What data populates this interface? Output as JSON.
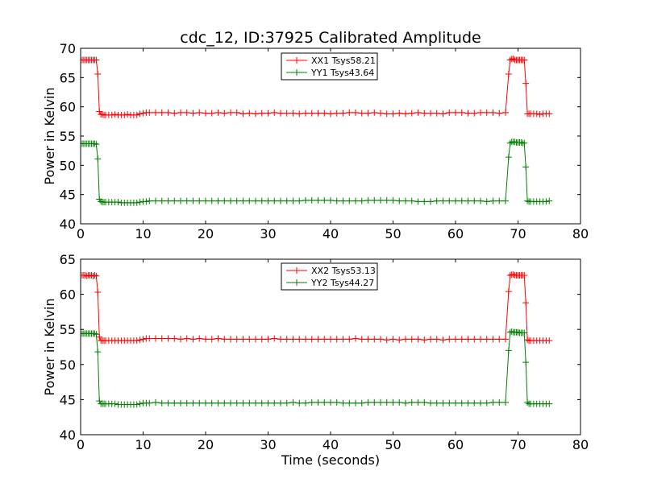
{
  "title": "cdc_12, ID:37925 Calibrated Amplitude",
  "chart_data": [
    {
      "type": "line",
      "ylabel": "Power in Kelvin",
      "xlabel": "",
      "xlim": [
        0,
        80
      ],
      "ylim": [
        40,
        70
      ],
      "xticks": [
        0,
        10,
        20,
        30,
        40,
        50,
        60,
        70,
        80
      ],
      "yticks": [
        40,
        45,
        50,
        55,
        60,
        65,
        70
      ],
      "legend_position": "top-center",
      "series": [
        {
          "name": "XX1 Tsys58.21",
          "color": "#ff0000",
          "marker": "plus",
          "x": [
            0.25,
            0.5,
            0.75,
            1.0,
            1.25,
            1.5,
            1.75,
            2.0,
            2.25,
            2.5,
            2.75,
            3.0,
            3.25,
            3.5,
            3.75,
            4.0,
            4.5,
            5.0,
            5.5,
            6.0,
            6.5,
            7.0,
            7.5,
            8.0,
            8.5,
            9.0,
            9.5,
            10.0,
            10.5,
            11.0,
            12.0,
            13.0,
            14.0,
            15.0,
            16.0,
            17.0,
            18.0,
            19.0,
            20.0,
            21.0,
            22.0,
            23.0,
            24.0,
            25.0,
            26.0,
            27.0,
            28.0,
            29.0,
            30.0,
            31.0,
            32.0,
            33.0,
            34.0,
            35.0,
            36.0,
            37.0,
            38.0,
            39.0,
            40.0,
            41.0,
            42.0,
            43.0,
            44.0,
            45.0,
            46.0,
            47.0,
            48.0,
            49.0,
            50.0,
            51.0,
            52.0,
            53.0,
            54.0,
            55.0,
            56.0,
            57.0,
            58.0,
            59.0,
            60.0,
            61.0,
            62.0,
            63.0,
            64.0,
            65.0,
            66.0,
            67.0,
            68.0,
            68.5,
            68.75,
            69.0,
            69.25,
            69.5,
            69.75,
            70.0,
            70.25,
            70.5,
            70.75,
            71.0,
            71.25,
            71.5,
            71.75,
            72.0,
            72.5,
            73.0,
            73.5,
            74.0,
            74.5,
            75.0
          ],
          "y": [
            68.0,
            68.0,
            68.0,
            68.0,
            68.0,
            68.0,
            68.0,
            68.0,
            68.0,
            68.0,
            65.6,
            59.2,
            58.7,
            58.7,
            58.6,
            58.6,
            58.6,
            58.6,
            58.7,
            58.6,
            58.6,
            58.6,
            58.7,
            58.6,
            58.6,
            58.6,
            58.8,
            58.9,
            59.0,
            59.0,
            59.0,
            59.0,
            59.0,
            58.9,
            59.0,
            59.0,
            58.9,
            59.0,
            58.9,
            58.9,
            59.0,
            58.9,
            59.0,
            59.0,
            58.8,
            58.9,
            58.8,
            58.9,
            58.9,
            59.0,
            58.9,
            58.9,
            58.9,
            58.8,
            58.9,
            58.9,
            58.9,
            58.9,
            58.8,
            58.9,
            58.9,
            59.0,
            59.0,
            58.9,
            58.9,
            59.0,
            58.9,
            58.8,
            58.8,
            58.9,
            58.8,
            58.9,
            59.0,
            58.9,
            58.9,
            58.9,
            58.8,
            59.0,
            59.0,
            59.0,
            58.9,
            58.9,
            59.0,
            59.0,
            59.0,
            58.9,
            59.0,
            65.6,
            68.0,
            68.2,
            68.2,
            68.0,
            68.0,
            68.0,
            68.0,
            68.0,
            68.0,
            68.0,
            64.0,
            58.8,
            58.8,
            58.8,
            58.8,
            58.8,
            58.7,
            58.8,
            58.8,
            58.8
          ]
        },
        {
          "name": "YY1 Tsys43.64",
          "color": "#008000",
          "marker": "plus",
          "x": [
            0.25,
            0.5,
            0.75,
            1.0,
            1.25,
            1.5,
            1.75,
            2.0,
            2.25,
            2.5,
            2.75,
            3.0,
            3.25,
            3.5,
            3.75,
            4.0,
            4.5,
            5.0,
            5.5,
            6.0,
            6.5,
            7.0,
            7.5,
            8.0,
            8.5,
            9.0,
            9.5,
            10.0,
            10.5,
            11.0,
            12.0,
            13.0,
            14.0,
            15.0,
            16.0,
            17.0,
            18.0,
            19.0,
            20.0,
            21.0,
            22.0,
            23.0,
            24.0,
            25.0,
            26.0,
            27.0,
            28.0,
            29.0,
            30.0,
            31.0,
            32.0,
            33.0,
            34.0,
            35.0,
            36.0,
            37.0,
            38.0,
            39.0,
            40.0,
            41.0,
            42.0,
            43.0,
            44.0,
            45.0,
            46.0,
            47.0,
            48.0,
            49.0,
            50.0,
            51.0,
            52.0,
            53.0,
            54.0,
            55.0,
            56.0,
            57.0,
            58.0,
            59.0,
            60.0,
            61.0,
            62.0,
            63.0,
            64.0,
            65.0,
            66.0,
            67.0,
            68.0,
            68.5,
            68.75,
            69.0,
            69.25,
            69.5,
            69.75,
            70.0,
            70.25,
            70.5,
            70.75,
            71.0,
            71.25,
            71.5,
            71.75,
            72.0,
            72.5,
            73.0,
            73.5,
            74.0,
            74.5,
            75.0
          ],
          "y": [
            53.7,
            53.7,
            53.7,
            53.7,
            53.7,
            53.7,
            53.7,
            53.7,
            53.7,
            53.6,
            51.1,
            44.2,
            43.8,
            43.7,
            43.7,
            43.7,
            43.7,
            43.7,
            43.7,
            43.7,
            43.6,
            43.6,
            43.6,
            43.6,
            43.6,
            43.6,
            43.7,
            43.8,
            43.8,
            43.9,
            43.9,
            43.9,
            43.9,
            43.9,
            43.9,
            43.9,
            43.9,
            43.9,
            43.9,
            43.9,
            43.9,
            43.9,
            43.9,
            43.9,
            43.9,
            43.9,
            43.9,
            43.9,
            43.9,
            43.9,
            43.9,
            43.9,
            43.9,
            43.9,
            44.0,
            44.0,
            44.0,
            44.0,
            44.0,
            43.9,
            43.9,
            43.9,
            43.9,
            43.9,
            44.0,
            44.0,
            44.0,
            44.0,
            44.0,
            43.9,
            43.9,
            43.9,
            43.8,
            43.8,
            43.8,
            43.9,
            43.9,
            43.9,
            43.9,
            43.9,
            43.9,
            43.9,
            43.9,
            43.8,
            43.9,
            43.9,
            43.9,
            51.4,
            53.8,
            54.0,
            54.0,
            54.0,
            53.9,
            53.9,
            53.9,
            53.9,
            53.8,
            53.8,
            49.7,
            43.9,
            43.8,
            43.8,
            43.8,
            43.8,
            43.8,
            43.8,
            43.8,
            43.9
          ]
        }
      ]
    },
    {
      "type": "line",
      "ylabel": "Power in Kelvin",
      "xlabel": "Time (seconds)",
      "xlim": [
        0,
        80
      ],
      "ylim": [
        40,
        65
      ],
      "xticks": [
        0,
        10,
        20,
        30,
        40,
        50,
        60,
        70,
        80
      ],
      "yticks": [
        40,
        45,
        50,
        55,
        60,
        65
      ],
      "legend_position": "top-center",
      "series": [
        {
          "name": "XX2 Tsys53.13",
          "color": "#ff0000",
          "marker": "plus",
          "x": [
            0.25,
            0.5,
            0.75,
            1.0,
            1.25,
            1.5,
            1.75,
            2.0,
            2.25,
            2.5,
            2.75,
            3.0,
            3.25,
            3.5,
            3.75,
            4.0,
            4.5,
            5.0,
            5.5,
            6.0,
            6.5,
            7.0,
            7.5,
            8.0,
            8.5,
            9.0,
            9.5,
            10.0,
            10.5,
            11.0,
            12.0,
            13.0,
            14.0,
            15.0,
            16.0,
            17.0,
            18.0,
            19.0,
            20.0,
            21.0,
            22.0,
            23.0,
            24.0,
            25.0,
            26.0,
            27.0,
            28.0,
            29.0,
            30.0,
            31.0,
            32.0,
            33.0,
            34.0,
            35.0,
            36.0,
            37.0,
            38.0,
            39.0,
            40.0,
            41.0,
            42.0,
            43.0,
            44.0,
            45.0,
            46.0,
            47.0,
            48.0,
            49.0,
            50.0,
            51.0,
            52.0,
            53.0,
            54.0,
            55.0,
            56.0,
            57.0,
            58.0,
            59.0,
            60.0,
            61.0,
            62.0,
            63.0,
            64.0,
            65.0,
            66.0,
            67.0,
            68.0,
            68.5,
            68.75,
            69.0,
            69.25,
            69.5,
            69.75,
            70.0,
            70.25,
            70.5,
            70.75,
            71.0,
            71.25,
            71.5,
            71.75,
            72.0,
            72.5,
            73.0,
            73.5,
            74.0,
            74.5,
            75.0
          ],
          "y": [
            62.7,
            62.7,
            62.7,
            62.6,
            62.7,
            62.7,
            62.7,
            62.6,
            62.7,
            62.6,
            60.3,
            53.9,
            53.4,
            53.4,
            53.4,
            53.4,
            53.4,
            53.4,
            53.4,
            53.4,
            53.4,
            53.4,
            53.4,
            53.4,
            53.4,
            53.4,
            53.5,
            53.6,
            53.7,
            53.7,
            53.7,
            53.7,
            53.7,
            53.7,
            53.6,
            53.7,
            53.6,
            53.7,
            53.6,
            53.6,
            53.7,
            53.6,
            53.6,
            53.6,
            53.6,
            53.6,
            53.6,
            53.6,
            53.6,
            53.7,
            53.6,
            53.6,
            53.6,
            53.6,
            53.6,
            53.6,
            53.6,
            53.6,
            53.6,
            53.6,
            53.6,
            53.6,
            53.7,
            53.6,
            53.6,
            53.6,
            53.6,
            53.5,
            53.6,
            53.5,
            53.6,
            53.6,
            53.6,
            53.5,
            53.6,
            53.6,
            53.5,
            53.6,
            53.6,
            53.6,
            53.6,
            53.6,
            53.6,
            53.6,
            53.6,
            53.6,
            53.6,
            60.4,
            62.7,
            62.8,
            62.8,
            62.7,
            62.7,
            62.7,
            62.7,
            62.7,
            62.7,
            62.7,
            58.8,
            53.5,
            53.4,
            53.4,
            53.4,
            53.4,
            53.4,
            53.4,
            53.4,
            53.4
          ]
        },
        {
          "name": "YY2 Tsys44.27",
          "color": "#008000",
          "marker": "plus",
          "x": [
            0.25,
            0.5,
            0.75,
            1.0,
            1.25,
            1.5,
            1.75,
            2.0,
            2.25,
            2.5,
            2.75,
            3.0,
            3.25,
            3.5,
            3.75,
            4.0,
            4.5,
            5.0,
            5.5,
            6.0,
            6.5,
            7.0,
            7.5,
            8.0,
            8.5,
            9.0,
            9.5,
            10.0,
            10.5,
            11.0,
            12.0,
            13.0,
            14.0,
            15.0,
            16.0,
            17.0,
            18.0,
            19.0,
            20.0,
            21.0,
            22.0,
            23.0,
            24.0,
            25.0,
            26.0,
            27.0,
            28.0,
            29.0,
            30.0,
            31.0,
            32.0,
            33.0,
            34.0,
            35.0,
            36.0,
            37.0,
            38.0,
            39.0,
            40.0,
            41.0,
            42.0,
            43.0,
            44.0,
            45.0,
            46.0,
            47.0,
            48.0,
            49.0,
            50.0,
            51.0,
            52.0,
            53.0,
            54.0,
            55.0,
            56.0,
            57.0,
            58.0,
            59.0,
            60.0,
            61.0,
            62.0,
            63.0,
            64.0,
            65.0,
            66.0,
            67.0,
            68.0,
            68.5,
            68.75,
            69.0,
            69.25,
            69.5,
            69.75,
            70.0,
            70.25,
            70.5,
            70.75,
            71.0,
            71.25,
            71.5,
            71.75,
            72.0,
            72.5,
            73.0,
            73.5,
            74.0,
            74.5,
            75.0
          ],
          "y": [
            54.4,
            54.4,
            54.4,
            54.4,
            54.4,
            54.4,
            54.4,
            54.4,
            54.4,
            54.3,
            51.8,
            44.8,
            44.4,
            44.4,
            44.4,
            44.4,
            44.4,
            44.4,
            44.4,
            44.3,
            44.3,
            44.3,
            44.3,
            44.3,
            44.3,
            44.3,
            44.4,
            44.5,
            44.5,
            44.5,
            44.6,
            44.5,
            44.5,
            44.5,
            44.5,
            44.5,
            44.5,
            44.5,
            44.5,
            44.5,
            44.5,
            44.5,
            44.5,
            44.5,
            44.5,
            44.5,
            44.5,
            44.5,
            44.5,
            44.5,
            44.5,
            44.5,
            44.6,
            44.5,
            44.5,
            44.6,
            44.6,
            44.6,
            44.6,
            44.6,
            44.5,
            44.5,
            44.5,
            44.5,
            44.6,
            44.6,
            44.6,
            44.6,
            44.6,
            44.6,
            44.5,
            44.6,
            44.6,
            44.6,
            44.5,
            44.5,
            44.5,
            44.5,
            44.5,
            44.5,
            44.5,
            44.5,
            44.5,
            44.5,
            44.6,
            44.6,
            44.6,
            52.0,
            54.6,
            54.7,
            54.6,
            54.6,
            54.6,
            54.6,
            54.5,
            54.5,
            54.5,
            54.5,
            50.3,
            44.6,
            44.4,
            44.4,
            44.4,
            44.4,
            44.4,
            44.4,
            44.4,
            44.4
          ]
        }
      ]
    }
  ]
}
